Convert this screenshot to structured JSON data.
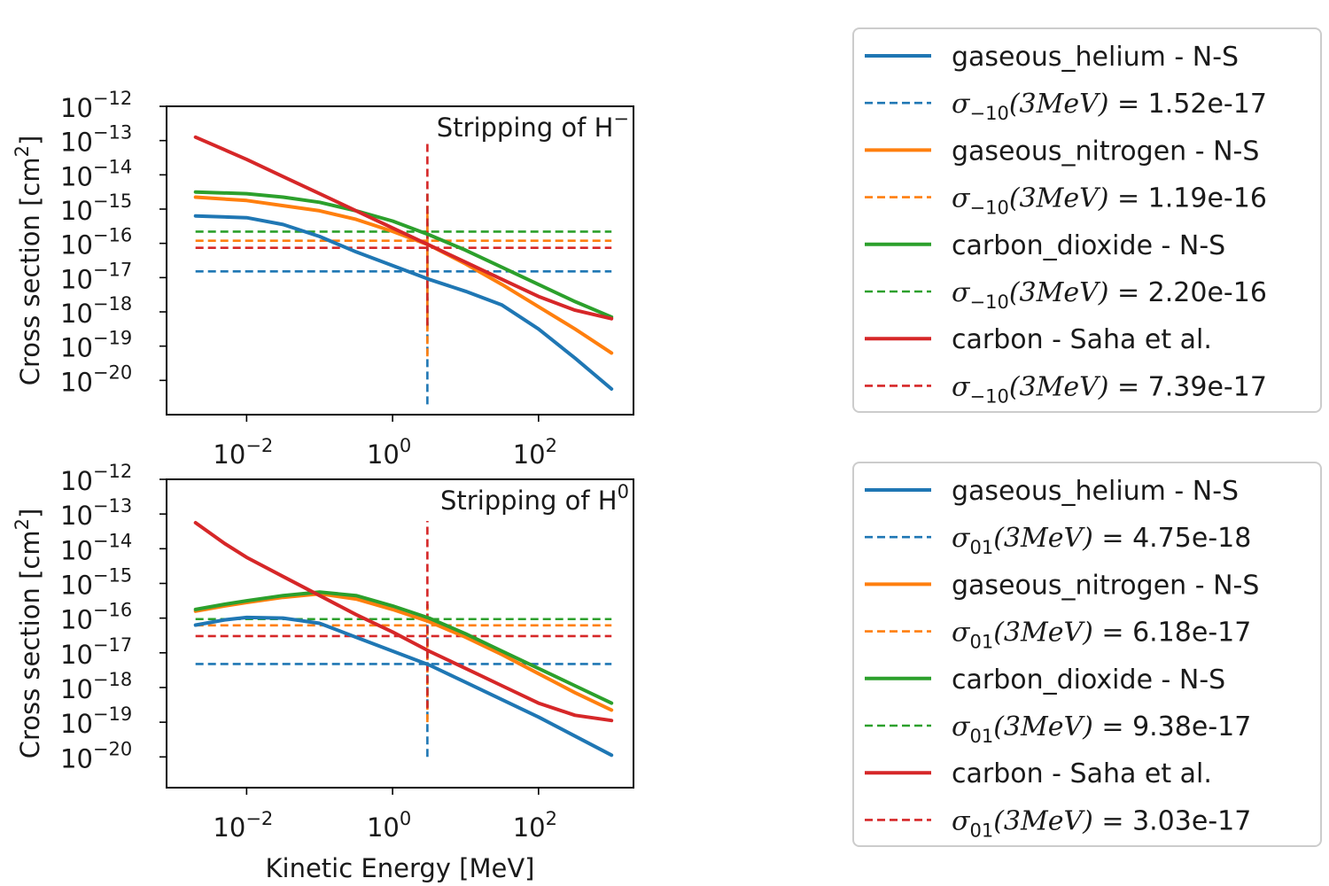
{
  "chart_data": [
    {
      "type": "line",
      "title": "Stripping of H",
      "title_sup": "−",
      "xlabel": "",
      "ylabel": "Cross section [cm",
      "ylabel_sup": "2",
      "ylabel_end": "]",
      "x_scale": "log",
      "y_scale": "log",
      "xlim": [
        0.0008,
        2000
      ],
      "ylim": [
        1e-21,
        1e-12
      ],
      "x_ticks": [
        {
          "base": "10",
          "exp": "−2",
          "v": -2
        },
        {
          "base": "10",
          "exp": "0",
          "v": 0
        },
        {
          "base": "10",
          "exp": "2",
          "v": 2
        }
      ],
      "y_ticks": [
        {
          "base": "10",
          "exp": "−12",
          "v": -12
        },
        {
          "base": "10",
          "exp": "−13",
          "v": -13
        },
        {
          "base": "10",
          "exp": "−14",
          "v": -14
        },
        {
          "base": "10",
          "exp": "−15",
          "v": -15
        },
        {
          "base": "10",
          "exp": "−16",
          "v": -16
        },
        {
          "base": "10",
          "exp": "−17",
          "v": -17
        },
        {
          "base": "10",
          "exp": "−18",
          "v": -18
        },
        {
          "base": "10",
          "exp": "−19",
          "v": -19
        },
        {
          "base": "10",
          "exp": "−20",
          "v": -20
        }
      ],
      "x_log": [
        -2.7,
        -2,
        -1.5,
        -1,
        -0.5,
        0,
        0.5,
        1,
        1.5,
        2,
        2.5,
        3
      ],
      "series": [
        {
          "name": "gaseous_helium - N-S",
          "color": "#1f77b4",
          "y_log": [
            -15.2,
            -15.25,
            -15.45,
            -15.8,
            -16.25,
            -16.65,
            -17.05,
            -17.4,
            -17.8,
            -18.5,
            -19.35,
            -20.25
          ]
        },
        {
          "name": "gaseous_nitrogen - N-S",
          "color": "#ff7f0e",
          "y_log": [
            -14.65,
            -14.75,
            -14.9,
            -15.05,
            -15.3,
            -15.65,
            -16.05,
            -16.6,
            -17.2,
            -17.85,
            -18.5,
            -19.2
          ]
        },
        {
          "name": "carbon_dioxide - N-S",
          "color": "#2ca02c",
          "y_log": [
            -14.5,
            -14.55,
            -14.65,
            -14.8,
            -15.05,
            -15.35,
            -15.75,
            -16.2,
            -16.7,
            -17.2,
            -17.7,
            -18.15
          ]
        },
        {
          "name": "carbon - Saha et al.",
          "color": "#d62728",
          "y_log": [
            -12.9,
            -13.55,
            -14.05,
            -14.55,
            -15.05,
            -15.55,
            -16.05,
            -16.55,
            -17.05,
            -17.55,
            -17.95,
            -18.2
          ]
        }
      ],
      "references": [
        {
          "sym": "σ",
          "sub": "−10",
          "arg": "(3MeV) = ",
          "value": "1.52e-17",
          "y_log": -16.818,
          "color": "#1f77b4"
        },
        {
          "sym": "σ",
          "sub": "−10",
          "arg": "(3MeV) = ",
          "value": "1.19e-16",
          "y_log": -15.924,
          "color": "#ff7f0e"
        },
        {
          "sym": "σ",
          "sub": "−10",
          "arg": "(3MeV) = ",
          "value": "2.20e-16",
          "y_log": -15.658,
          "color": "#2ca02c"
        },
        {
          "sym": "σ",
          "sub": "−10",
          "arg": "(3MeV) = ",
          "value": "7.39e-17",
          "y_log": -16.131,
          "color": "#d62728"
        }
      ],
      "vline_x_log": 0.477,
      "vlines": [
        {
          "color": "#1f77b4",
          "y_log": [
            -20.7,
            -15.2
          ]
        },
        {
          "color": "#ff7f0e",
          "y_log": [
            -19.3,
            -14.9
          ]
        },
        {
          "color": "#2ca02c",
          "y_log": [
            -18.4,
            -14.4
          ]
        },
        {
          "color": "#d62728",
          "y_log": [
            -18.4,
            -13.0
          ]
        }
      ]
    },
    {
      "type": "line",
      "title": "Stripping of H",
      "title_sup": "0",
      "xlabel": "Kinetic Energy [MeV]",
      "ylabel": "Cross section [cm",
      "ylabel_sup": "2",
      "ylabel_end": "]",
      "x_scale": "log",
      "y_scale": "log",
      "xlim": [
        0.0008,
        2000
      ],
      "ylim": [
        1.3e-21,
        1e-12
      ],
      "x_ticks": [
        {
          "base": "10",
          "exp": "−2",
          "v": -2
        },
        {
          "base": "10",
          "exp": "0",
          "v": 0
        },
        {
          "base": "10",
          "exp": "2",
          "v": 2
        }
      ],
      "y_ticks": [
        {
          "base": "10",
          "exp": "−12",
          "v": -12
        },
        {
          "base": "10",
          "exp": "−13",
          "v": -13
        },
        {
          "base": "10",
          "exp": "−14",
          "v": -14
        },
        {
          "base": "10",
          "exp": "−15",
          "v": -15
        },
        {
          "base": "10",
          "exp": "−16",
          "v": -16
        },
        {
          "base": "10",
          "exp": "−17",
          "v": -17
        },
        {
          "base": "10",
          "exp": "−18",
          "v": -18
        },
        {
          "base": "10",
          "exp": "−19",
          "v": -19
        },
        {
          "base": "10",
          "exp": "−20",
          "v": -20
        }
      ],
      "x_log": [
        -2.7,
        -2.3,
        -2,
        -1.5,
        -1,
        -0.5,
        0,
        0.5,
        1,
        1.5,
        2,
        2.5,
        3
      ],
      "series": [
        {
          "name": "gaseous_helium - N-S",
          "color": "#1f77b4",
          "y_log": [
            -16.2,
            -16.05,
            -15.98,
            -16.0,
            -16.15,
            -16.55,
            -16.95,
            -17.35,
            -17.85,
            -18.35,
            -18.85,
            -19.4,
            -19.95
          ]
        },
        {
          "name": "gaseous_nitrogen - N-S",
          "color": "#ff7f0e",
          "y_log": [
            -15.8,
            -15.65,
            -15.55,
            -15.4,
            -15.3,
            -15.45,
            -15.75,
            -16.1,
            -16.55,
            -17.05,
            -17.6,
            -18.15,
            -18.65
          ]
        },
        {
          "name": "carbon_dioxide - N-S",
          "color": "#2ca02c",
          "y_log": [
            -15.75,
            -15.6,
            -15.5,
            -15.35,
            -15.25,
            -15.35,
            -15.65,
            -16.0,
            -16.45,
            -16.95,
            -17.45,
            -17.95,
            -18.45
          ]
        },
        {
          "name": "carbon - Saha et al.",
          "color": "#d62728",
          "y_log": [
            -13.25,
            -13.85,
            -14.25,
            -14.8,
            -15.35,
            -15.9,
            -16.4,
            -16.95,
            -17.45,
            -17.95,
            -18.45,
            -18.8,
            -18.95
          ]
        }
      ],
      "references": [
        {
          "sym": "σ",
          "sub": "01",
          "arg": "(3MeV) = ",
          "value": "4.75e-18",
          "y_log": -17.323,
          "color": "#1f77b4"
        },
        {
          "sym": "σ",
          "sub": "01",
          "arg": "(3MeV) = ",
          "value": "6.18e-17",
          "y_log": -16.209,
          "color": "#ff7f0e"
        },
        {
          "sym": "σ",
          "sub": "01",
          "arg": "(3MeV) = ",
          "value": "9.38e-17",
          "y_log": -16.028,
          "color": "#2ca02c"
        },
        {
          "sym": "σ",
          "sub": "01",
          "arg": "(3MeV) = ",
          "value": "3.03e-17",
          "y_log": -16.519,
          "color": "#d62728"
        }
      ],
      "vline_x_log": 0.477,
      "vlines": [
        {
          "color": "#1f77b4",
          "y_log": [
            -20.0,
            -16.0
          ]
        },
        {
          "color": "#ff7f0e",
          "y_log": [
            -19.0,
            -15.6
          ]
        },
        {
          "color": "#2ca02c",
          "y_log": [
            -18.6,
            -15.6
          ]
        },
        {
          "color": "#d62728",
          "y_log": [
            -18.6,
            -13.2
          ]
        }
      ]
    }
  ]
}
